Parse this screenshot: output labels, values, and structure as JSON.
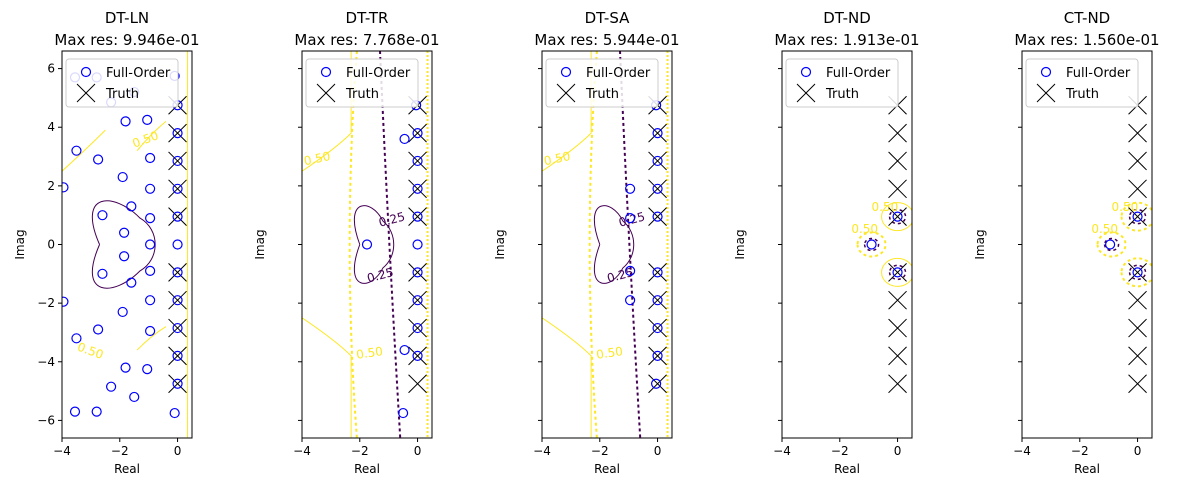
{
  "colors": {
    "full_order_marker": "#0000ff",
    "truth_marker": "#000000",
    "contour_low": "#440154",
    "contour_high": "#fde725"
  },
  "chart_data": [
    {
      "type": "scatter",
      "title": "DT-LN",
      "subtitle": "Max res: 9.946e-01",
      "xlabel": "Real",
      "ylabel": "Imag",
      "xlim": [
        -4,
        0.5
      ],
      "ylim": [
        -6.6,
        6.6
      ],
      "xticks": [
        "-4",
        "-2",
        "0"
      ],
      "yticks": [
        "-6",
        "-4",
        "-2",
        "0",
        "2",
        "4",
        "6"
      ],
      "show_ytick_labels": true,
      "legend": {
        "placement": "top-left",
        "entries": [
          "Full-Order",
          "Truth"
        ]
      },
      "series": [
        {
          "name": "Full-Order",
          "points": [
            [
              -3.95,
              1.95
            ],
            [
              -3.95,
              -1.95
            ],
            [
              -3.55,
              5.7
            ],
            [
              -3.55,
              -5.7
            ],
            [
              -3.5,
              3.2
            ],
            [
              -3.5,
              -3.2
            ],
            [
              -2.8,
              5.7
            ],
            [
              -2.8,
              -5.7
            ],
            [
              -2.75,
              2.9
            ],
            [
              -2.75,
              -2.9
            ],
            [
              -2.6,
              1.0
            ],
            [
              -2.6,
              -1.0
            ],
            [
              -2.3,
              4.85
            ],
            [
              -2.3,
              -4.85
            ],
            [
              -1.9,
              2.3
            ],
            [
              -1.9,
              -2.3
            ],
            [
              -1.85,
              0.4
            ],
            [
              -1.85,
              -0.4
            ],
            [
              -1.8,
              4.2
            ],
            [
              -1.8,
              -4.2
            ],
            [
              -1.6,
              1.3
            ],
            [
              -1.6,
              -1.3
            ],
            [
              -1.5,
              5.2
            ],
            [
              -1.5,
              -5.2
            ],
            [
              -1.05,
              4.25
            ],
            [
              -1.05,
              -4.25
            ],
            [
              -0.95,
              2.95
            ],
            [
              -0.95,
              -2.95
            ],
            [
              -0.95,
              1.9
            ],
            [
              -0.95,
              -1.9
            ],
            [
              -0.95,
              0.9
            ],
            [
              -0.95,
              -0.9
            ],
            [
              -0.95,
              0.0
            ],
            [
              -0.1,
              5.75
            ],
            [
              -0.1,
              -5.75
            ],
            [
              0.0,
              4.75
            ],
            [
              0.0,
              -4.75
            ],
            [
              0.0,
              3.8
            ],
            [
              0.0,
              -3.8
            ],
            [
              0.0,
              2.85
            ],
            [
              0.0,
              -2.85
            ],
            [
              0.0,
              1.9
            ],
            [
              0.0,
              -1.9
            ],
            [
              0.0,
              0.95
            ],
            [
              0.0,
              -0.95
            ],
            [
              0.0,
              0.0
            ]
          ]
        },
        {
          "name": "Truth",
          "points": [
            [
              0,
              4.75
            ],
            [
              0,
              3.8
            ],
            [
              0,
              2.85
            ],
            [
              0,
              1.9
            ],
            [
              0,
              0.95
            ],
            [
              0,
              -0.95
            ],
            [
              0,
              -1.9
            ],
            [
              0,
              -2.85
            ],
            [
              0,
              -3.8
            ],
            [
              0,
              -4.75
            ]
          ]
        }
      ],
      "contour_labels": [
        "0.50",
        "0.50"
      ]
    },
    {
      "type": "scatter",
      "title": "DT-TR",
      "subtitle": "Max res: 7.768e-01",
      "xlabel": "Real",
      "ylabel": "Imag",
      "xlim": [
        -4,
        0.5
      ],
      "ylim": [
        -6.6,
        6.6
      ],
      "xticks": [
        "-4",
        "-2",
        "0"
      ],
      "yticks": [
        "-6",
        "-4",
        "-2",
        "0",
        "2",
        "4",
        "6"
      ],
      "show_ytick_labels": false,
      "legend": {
        "placement": "top-left",
        "entries": [
          "Full-Order",
          "Truth"
        ]
      },
      "series": [
        {
          "name": "Full-Order",
          "points": [
            [
              -1.75,
              0.0
            ],
            [
              -0.45,
              3.6
            ],
            [
              -0.45,
              -3.6
            ],
            [
              -0.5,
              -5.75
            ],
            [
              -0.05,
              4.75
            ],
            [
              0.0,
              3.8
            ],
            [
              0.0,
              -3.8
            ],
            [
              0.0,
              2.85
            ],
            [
              0.0,
              -2.85
            ],
            [
              0.0,
              1.9
            ],
            [
              0.0,
              -1.9
            ],
            [
              0.0,
              0.95
            ],
            [
              0.0,
              -0.95
            ],
            [
              0.0,
              0.0
            ]
          ]
        },
        {
          "name": "Truth",
          "points": [
            [
              0,
              4.75
            ],
            [
              0,
              3.8
            ],
            [
              0,
              2.85
            ],
            [
              0,
              1.9
            ],
            [
              0,
              0.95
            ],
            [
              0,
              -0.95
            ],
            [
              0,
              -1.9
            ],
            [
              0,
              -2.85
            ],
            [
              0,
              -3.8
            ],
            [
              0,
              -4.75
            ]
          ]
        }
      ],
      "contour_labels": [
        "0.50",
        "0.50",
        "0.50",
        "0.25",
        "0.25",
        "0.25",
        "0.25"
      ]
    },
    {
      "type": "scatter",
      "title": "DT-SA",
      "subtitle": "Max res: 5.944e-01",
      "xlabel": "Real",
      "ylabel": "Imag",
      "xlim": [
        -4,
        0.5
      ],
      "ylim": [
        -6.6,
        6.6
      ],
      "xticks": [
        "-4",
        "-2",
        "0"
      ],
      "yticks": [
        "-6",
        "-4",
        "-2",
        "0",
        "2",
        "4",
        "6"
      ],
      "show_ytick_labels": false,
      "legend": {
        "placement": "top-left",
        "entries": [
          "Full-Order",
          "Truth"
        ]
      },
      "series": [
        {
          "name": "Full-Order",
          "points": [
            [
              -0.95,
              1.9
            ],
            [
              -0.95,
              -1.9
            ],
            [
              -0.95,
              0.9
            ],
            [
              -0.95,
              -0.9
            ],
            [
              -0.05,
              4.75
            ],
            [
              0.0,
              3.8
            ],
            [
              0.0,
              -3.8
            ],
            [
              0.0,
              2.85
            ],
            [
              0.0,
              -2.85
            ],
            [
              0.0,
              1.9
            ],
            [
              0.0,
              -1.9
            ],
            [
              0.0,
              0.95
            ],
            [
              0.0,
              -0.95
            ],
            [
              -0.05,
              -4.75
            ]
          ]
        },
        {
          "name": "Truth",
          "points": [
            [
              0,
              4.75
            ],
            [
              0,
              3.8
            ],
            [
              0,
              2.85
            ],
            [
              0,
              1.9
            ],
            [
              0,
              0.95
            ],
            [
              0,
              -0.95
            ],
            [
              0,
              -1.9
            ],
            [
              0,
              -2.85
            ],
            [
              0,
              -3.8
            ],
            [
              0,
              -4.75
            ]
          ]
        }
      ],
      "contour_labels": [
        "0.50",
        "0.50",
        "0.50",
        "0.25",
        "0.25"
      ]
    },
    {
      "type": "scatter",
      "title": "DT-ND",
      "subtitle": "Max res: 1.913e-01",
      "xlabel": "Real",
      "ylabel": "Imag",
      "xlim": [
        -4,
        0.5
      ],
      "ylim": [
        -6.6,
        6.6
      ],
      "xticks": [
        "-4",
        "-2",
        "0"
      ],
      "yticks": [
        "-6",
        "-4",
        "-2",
        "0",
        "2",
        "4",
        "6"
      ],
      "show_ytick_labels": false,
      "legend": {
        "placement": "top-left",
        "entries": [
          "Full-Order",
          "Truth"
        ]
      },
      "series": [
        {
          "name": "Full-Order",
          "points": [
            [
              -0.9,
              0.0
            ],
            [
              0.0,
              0.95
            ],
            [
              0.0,
              -0.95
            ]
          ]
        },
        {
          "name": "Truth",
          "points": [
            [
              0,
              4.75
            ],
            [
              0,
              3.8
            ],
            [
              0,
              2.85
            ],
            [
              0,
              1.9
            ],
            [
              0,
              0.95
            ],
            [
              0,
              -0.95
            ],
            [
              0,
              -1.9
            ],
            [
              0,
              -2.85
            ],
            [
              0,
              -3.8
            ],
            [
              0,
              -4.75
            ]
          ]
        }
      ],
      "contour_labels": [
        "0.50",
        "0.50",
        "0.50",
        "0.50",
        "0.50"
      ]
    },
    {
      "type": "scatter",
      "title": "CT-ND",
      "subtitle": "Max res: 1.560e-01",
      "xlabel": "Real",
      "ylabel": "Imag",
      "xlim": [
        -4,
        0.5
      ],
      "ylim": [
        -6.6,
        6.6
      ],
      "xticks": [
        "-4",
        "-2",
        "0"
      ],
      "yticks": [
        "-6",
        "-4",
        "-2",
        "0",
        "2",
        "4",
        "6"
      ],
      "show_ytick_labels": false,
      "legend": {
        "placement": "top-left",
        "entries": [
          "Full-Order",
          "Truth"
        ]
      },
      "series": [
        {
          "name": "Full-Order",
          "points": [
            [
              -0.95,
              0.0
            ],
            [
              0.0,
              0.95
            ],
            [
              0.0,
              -0.95
            ]
          ]
        },
        {
          "name": "Truth",
          "points": [
            [
              0,
              4.75
            ],
            [
              0,
              3.8
            ],
            [
              0,
              2.85
            ],
            [
              0,
              1.9
            ],
            [
              0,
              0.95
            ],
            [
              0,
              -0.95
            ],
            [
              0,
              -1.9
            ],
            [
              0,
              -2.85
            ],
            [
              0,
              -3.8
            ],
            [
              0,
              -4.75
            ]
          ]
        }
      ],
      "contour_labels": [
        "0.50",
        "0.50"
      ]
    }
  ]
}
